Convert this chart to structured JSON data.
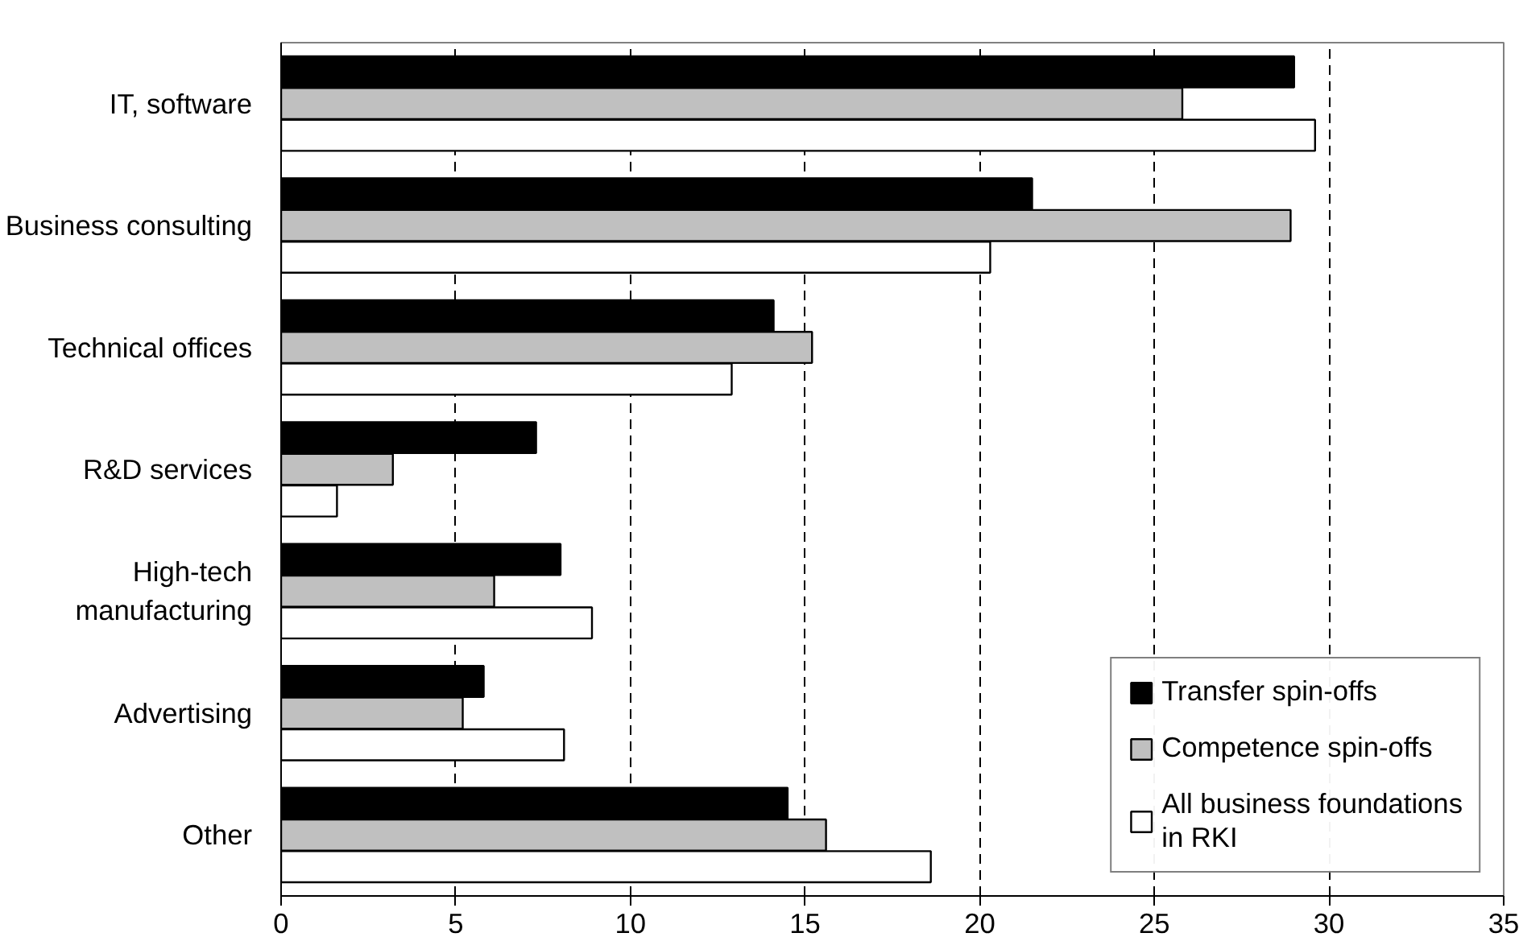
{
  "chart_data": {
    "type": "bar",
    "orientation": "horizontal",
    "categories": [
      "IT, software",
      "Business consulting",
      "Technical offices",
      "R&D services",
      "High-tech\nmanufacturing",
      "Advertising",
      "Other"
    ],
    "series": [
      {
        "name": "Transfer spin-offs",
        "color": "#000000",
        "values": [
          29.0,
          21.5,
          14.1,
          7.3,
          8.0,
          5.8,
          14.5
        ]
      },
      {
        "name": "Competence spin-offs",
        "color": "#c0c0c0",
        "values": [
          25.8,
          28.9,
          15.2,
          3.2,
          6.1,
          5.2,
          15.6
        ]
      },
      {
        "name": "All business foundations\nin RKI",
        "color": "#ffffff",
        "values": [
          29.6,
          20.3,
          12.9,
          1.6,
          8.9,
          8.1,
          18.6
        ]
      }
    ],
    "xlim": [
      0,
      35
    ],
    "xticks": [
      0,
      5,
      10,
      15,
      20,
      25,
      30,
      35
    ],
    "grid": "x",
    "legend": "bottom right"
  }
}
